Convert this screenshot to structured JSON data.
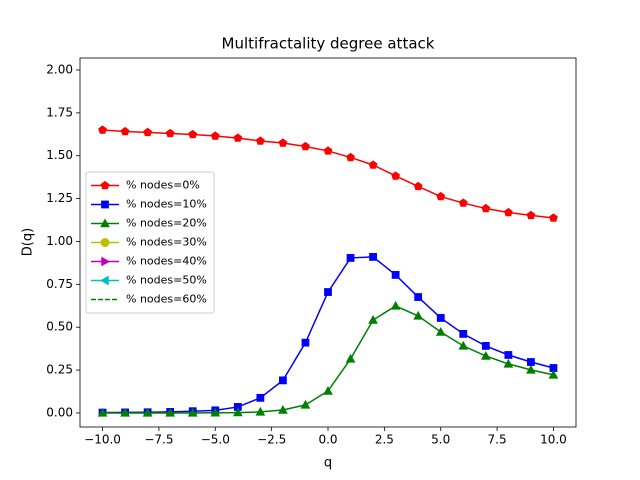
{
  "chart_data": {
    "type": "line",
    "title": "Multifractality degree attack",
    "xlabel": "q",
    "ylabel": "D(q)",
    "x": [
      -10,
      -9,
      -8,
      -7,
      -6,
      -5,
      -4,
      -3,
      -2,
      -1,
      0,
      1,
      2,
      3,
      4,
      5,
      6,
      7,
      8,
      9,
      10
    ],
    "xlim": [
      -11,
      11
    ],
    "xticks": [
      {
        "value": -10,
        "label": "−10.0"
      },
      {
        "value": -7.5,
        "label": "−7.5"
      },
      {
        "value": -5,
        "label": "−5.0"
      },
      {
        "value": -2.5,
        "label": "−2.5"
      },
      {
        "value": 0,
        "label": "0.0"
      },
      {
        "value": 2.5,
        "label": "2.5"
      },
      {
        "value": 5,
        "label": "5.0"
      },
      {
        "value": 7.5,
        "label": "7.5"
      },
      {
        "value": 10,
        "label": "10.0"
      }
    ],
    "ylim": [
      -0.082,
      2.07
    ],
    "yticks": [
      {
        "value": 0,
        "label": "0.00"
      },
      {
        "value": 0.25,
        "label": "0.25"
      },
      {
        "value": 0.5,
        "label": "0.50"
      },
      {
        "value": 0.75,
        "label": "0.75"
      },
      {
        "value": 1,
        "label": "1.00"
      },
      {
        "value": 1.25,
        "label": "1.25"
      },
      {
        "value": 1.5,
        "label": "1.50"
      },
      {
        "value": 1.75,
        "label": "1.75"
      },
      {
        "value": 2,
        "label": "2.00"
      }
    ],
    "legend": "center left",
    "series": [
      {
        "name": "% nodes=0%",
        "color": "#ff0000",
        "marker": "pentagon",
        "linestyle": "solid",
        "values": [
          1.65,
          1.641,
          1.636,
          1.63,
          1.624,
          1.615,
          1.603,
          1.586,
          1.574,
          1.554,
          1.528,
          1.49,
          1.446,
          1.382,
          1.321,
          1.262,
          1.224,
          1.192,
          1.169,
          1.152,
          1.137
        ]
      },
      {
        "name": "% nodes=10%",
        "color": "#0000ff",
        "marker": "square",
        "linestyle": "solid",
        "values": [
          0.002,
          0.003,
          0.004,
          0.006,
          0.01,
          0.015,
          0.035,
          0.088,
          0.19,
          0.41,
          0.705,
          0.904,
          0.91,
          0.805,
          0.676,
          0.554,
          0.461,
          0.391,
          0.338,
          0.297,
          0.262
        ]
      },
      {
        "name": "% nodes=20%",
        "color": "#008000",
        "marker": "triangle-up",
        "linestyle": "solid",
        "values": [
          0.0,
          0.0,
          0.0,
          0.0,
          0.0,
          0.001,
          0.002,
          0.006,
          0.017,
          0.047,
          0.128,
          0.315,
          0.542,
          0.624,
          0.566,
          0.472,
          0.391,
          0.332,
          0.286,
          0.251,
          0.222
        ]
      },
      {
        "name": "% nodes=30%",
        "color": "#bfbf00",
        "marker": "circle",
        "linestyle": "solid",
        "values": [
          null,
          null,
          null,
          null,
          null,
          null,
          null,
          null,
          null,
          null,
          null,
          null,
          null,
          null,
          null,
          null,
          null,
          null,
          null,
          null,
          null
        ]
      },
      {
        "name": "% nodes=40%",
        "color": "#bf00bf",
        "marker": "triangle-right",
        "linestyle": "solid",
        "values": [
          null,
          null,
          null,
          null,
          null,
          null,
          null,
          null,
          null,
          null,
          null,
          null,
          null,
          null,
          null,
          null,
          null,
          null,
          null,
          null,
          null
        ]
      },
      {
        "name": "% nodes=50%",
        "color": "#00bfbf",
        "marker": "triangle-left",
        "linestyle": "solid",
        "values": [
          null,
          null,
          null,
          null,
          null,
          null,
          null,
          null,
          null,
          null,
          null,
          null,
          null,
          null,
          null,
          null,
          null,
          null,
          null,
          null,
          null
        ]
      },
      {
        "name": "% nodes=60%",
        "color": "#008000",
        "marker": "none",
        "linestyle": "dashed",
        "values": [
          null,
          null,
          null,
          null,
          null,
          null,
          null,
          null,
          null,
          null,
          null,
          null,
          null,
          null,
          null,
          null,
          null,
          null,
          null,
          null,
          null
        ]
      }
    ]
  }
}
